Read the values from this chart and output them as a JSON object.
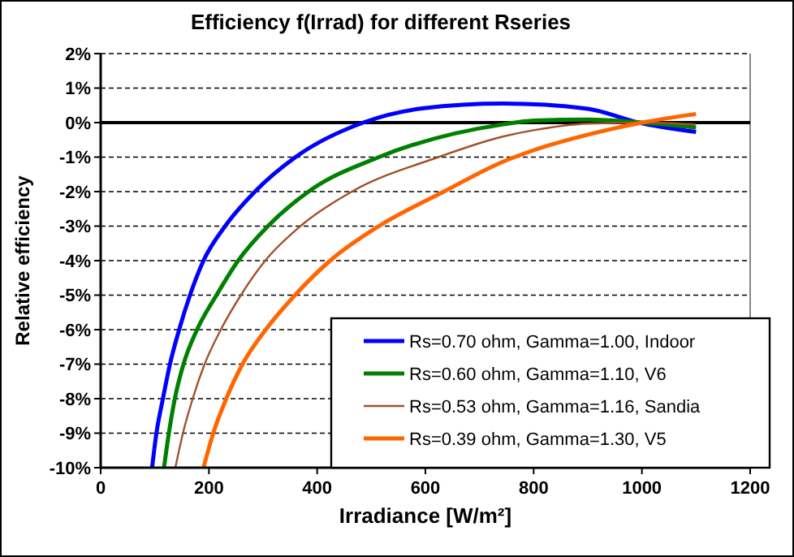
{
  "chart_data": {
    "type": "line",
    "title": "Efficiency f(Irrad) for different  Rseries",
    "xlabel": "Irradiance [W/m²]",
    "ylabel": "Relative efficiency",
    "xlim": [
      0,
      1200
    ],
    "xticks": [
      0,
      200,
      400,
      600,
      800,
      1000,
      1200
    ],
    "ylim": [
      -10,
      2
    ],
    "yticks": [
      {
        "value": 2,
        "label": "2%"
      },
      {
        "value": 1,
        "label": "1%"
      },
      {
        "value": 0,
        "label": "0%"
      },
      {
        "value": -1,
        "label": "-1%"
      },
      {
        "value": -2,
        "label": "-2%"
      },
      {
        "value": -3,
        "label": "-3%"
      },
      {
        "value": -4,
        "label": "-4%"
      },
      {
        "value": -5,
        "label": "-5%"
      },
      {
        "value": -6,
        "label": "-6%"
      },
      {
        "value": -7,
        "label": "-7%"
      },
      {
        "value": -8,
        "label": "-8%"
      },
      {
        "value": -9,
        "label": "-9%"
      },
      {
        "value": -10,
        "label": "-10%"
      }
    ],
    "grid": "y",
    "legend": "bottom right",
    "marker": "none",
    "line_style": "solid",
    "ref_lines": [
      {
        "axis": "y",
        "value": 0,
        "color": "#000000"
      }
    ],
    "series": [
      {
        "name": "Rs=0.70 ohm, Gamma=1.00, Indoor",
        "color": "#0000ff",
        "x": [
          95,
          103,
          115,
          128,
          145,
          165,
          190,
          230,
          285,
          360,
          485,
          594,
          744,
          900,
          994,
          1100
        ],
        "values": [
          -10,
          -9,
          -8,
          -7,
          -6,
          -5,
          -4,
          -3,
          -2,
          -1,
          0,
          0.41,
          0.55,
          0.4,
          0,
          -0.27
        ]
      },
      {
        "name": "Rs=0.60 ohm, Gamma=1.10, V6",
        "color": "#008000",
        "x": [
          117,
          126,
          137,
          153,
          178,
          214,
          254,
          309,
          384,
          514,
          744,
          800,
          900,
          1000,
          1100
        ],
        "values": [
          -10,
          -9,
          -8,
          -7,
          -6,
          -5,
          -4,
          -3,
          -2,
          -1,
          -0.05,
          0.06,
          0.09,
          0,
          -0.14
        ]
      },
      {
        "name": "Rs=0.53 ohm, Gamma=1.16, Sandia",
        "color": "#a0522d",
        "x": [
          138,
          152,
          170,
          192,
          222,
          259,
          304,
          369,
          464,
          624,
          744,
          800,
          900,
          1000,
          1100
        ],
        "values": [
          -10,
          -9,
          -8,
          -7,
          -6,
          -5,
          -4,
          -3,
          -2,
          -1,
          -0.4,
          -0.22,
          -0.03,
          0,
          -0.05
        ]
      },
      {
        "name": "Rs=0.39 ohm, Gamma=1.30, V5",
        "color": "#ff6600",
        "x": [
          190,
          208,
          232,
          262,
          305,
          359,
          424,
          514,
          634,
          744,
          800,
          900,
          1000,
          1100
        ],
        "values": [
          -10,
          -9,
          -8,
          -7,
          -6,
          -5,
          -4,
          -3,
          -2,
          -1.13,
          -0.8,
          -0.35,
          0,
          0.25
        ]
      }
    ]
  }
}
